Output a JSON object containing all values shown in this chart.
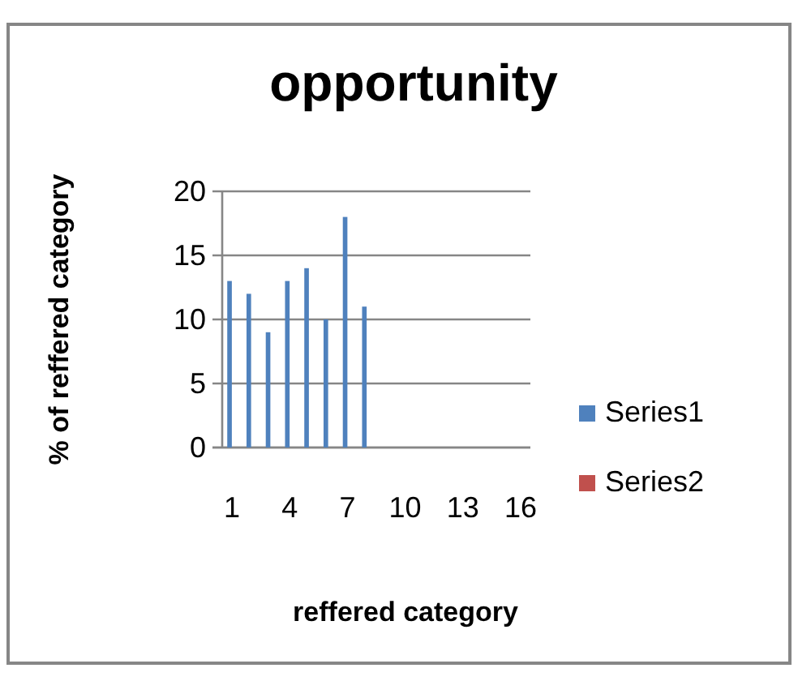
{
  "chart_data": {
    "type": "bar",
    "title": "opportunity",
    "xlabel": "reffered category",
    "ylabel": "% of reffered category",
    "categories": [
      "1",
      null,
      null,
      "4",
      null,
      null,
      "7",
      null,
      null,
      "10",
      null,
      null,
      "13",
      null,
      null,
      "16"
    ],
    "series": [
      {
        "name": "Series1",
        "color": "#4f81bd",
        "values": [
          13,
          12,
          9,
          13,
          14,
          10,
          18,
          11,
          null,
          null,
          null,
          null,
          null,
          null,
          null,
          null
        ]
      },
      {
        "name": "Series2",
        "color": "#c0504d",
        "values": [
          null,
          null,
          null,
          null,
          null,
          null,
          null,
          null,
          null,
          null,
          null,
          null,
          null,
          null,
          null,
          null
        ]
      }
    ],
    "ylim": [
      0,
      20
    ],
    "yticks": [
      0,
      5,
      10,
      15,
      20
    ],
    "grid": "y",
    "legend": "right"
  }
}
